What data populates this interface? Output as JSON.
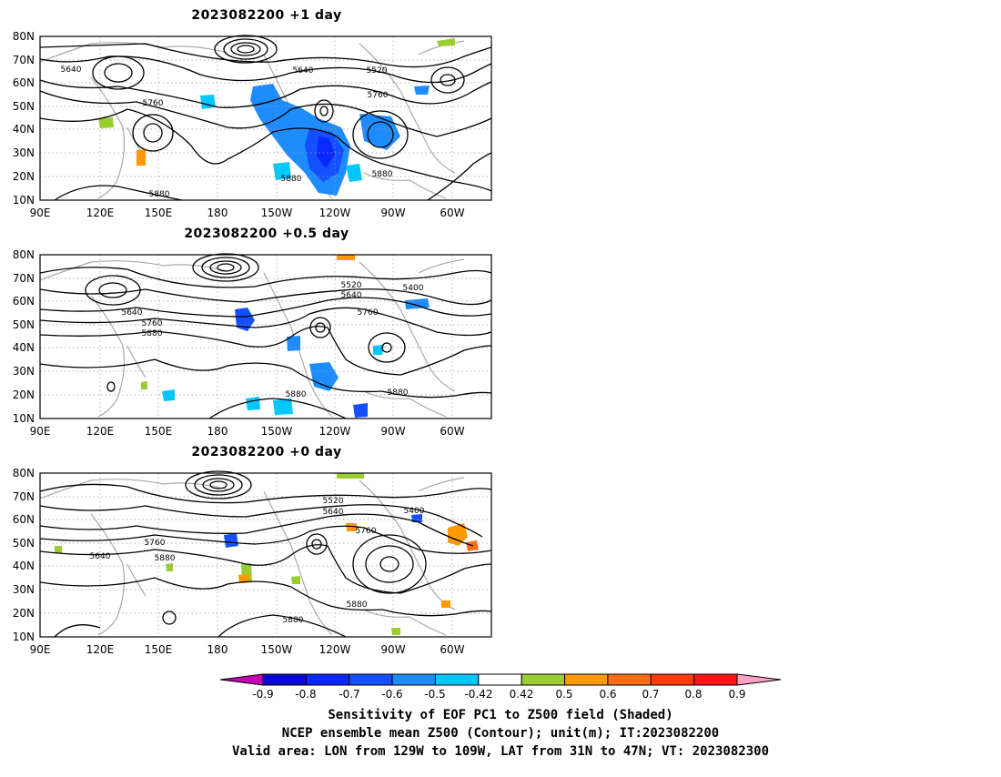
{
  "panels": [
    {
      "title": "2023082200  +1 day",
      "contour_labels": [
        "5640",
        "5640",
        "5520",
        "5760",
        "5760",
        "5880",
        "5880",
        "5880"
      ]
    },
    {
      "title": "2023082200  +0.5 day",
      "contour_labels": [
        "5520",
        "5640",
        "5400",
        "5640",
        "5760",
        "5880",
        "5760",
        "5880",
        "5880"
      ]
    },
    {
      "title": "2023082200  +0 day",
      "contour_labels": [
        "5520",
        "5640",
        "5400",
        "5760",
        "5760",
        "5640",
        "5880",
        "5880",
        "5880"
      ]
    }
  ],
  "axes": {
    "y_ticks": [
      "80N",
      "70N",
      "60N",
      "50N",
      "40N",
      "30N",
      "20N",
      "10N"
    ],
    "x_ticks": [
      "90E",
      "120E",
      "150E",
      "180",
      "150W",
      "120W",
      "90W",
      "60W"
    ]
  },
  "colorbar": {
    "labels": [
      "-0.9",
      "-0.8",
      "-0.7",
      "-0.6",
      "-0.5",
      "-0.42",
      "0.42",
      "0.5",
      "0.6",
      "0.7",
      "0.8",
      "0.9"
    ],
    "low_extend_color": "#c800b4",
    "colors": [
      "#0a0ad2",
      "#0a28ff",
      "#1450ff",
      "#1e8cff",
      "#00c8ff",
      "#ffffff",
      "#9acd32",
      "#ff9900",
      "#ff6e14",
      "#ff3c0a",
      "#ff1414"
    ],
    "high_extend_color": "#ffa0c8"
  },
  "caption": {
    "line1": "Sensitivity of EOF PC1 to Z500 field (Shaded)",
    "line2": "NCEP ensemble mean Z500 (Contour); unit(m); IT:2023082200",
    "line3": "Valid area: LON from 129W to 109W, LAT from 31N to 47N; VT: 2023082300"
  }
}
